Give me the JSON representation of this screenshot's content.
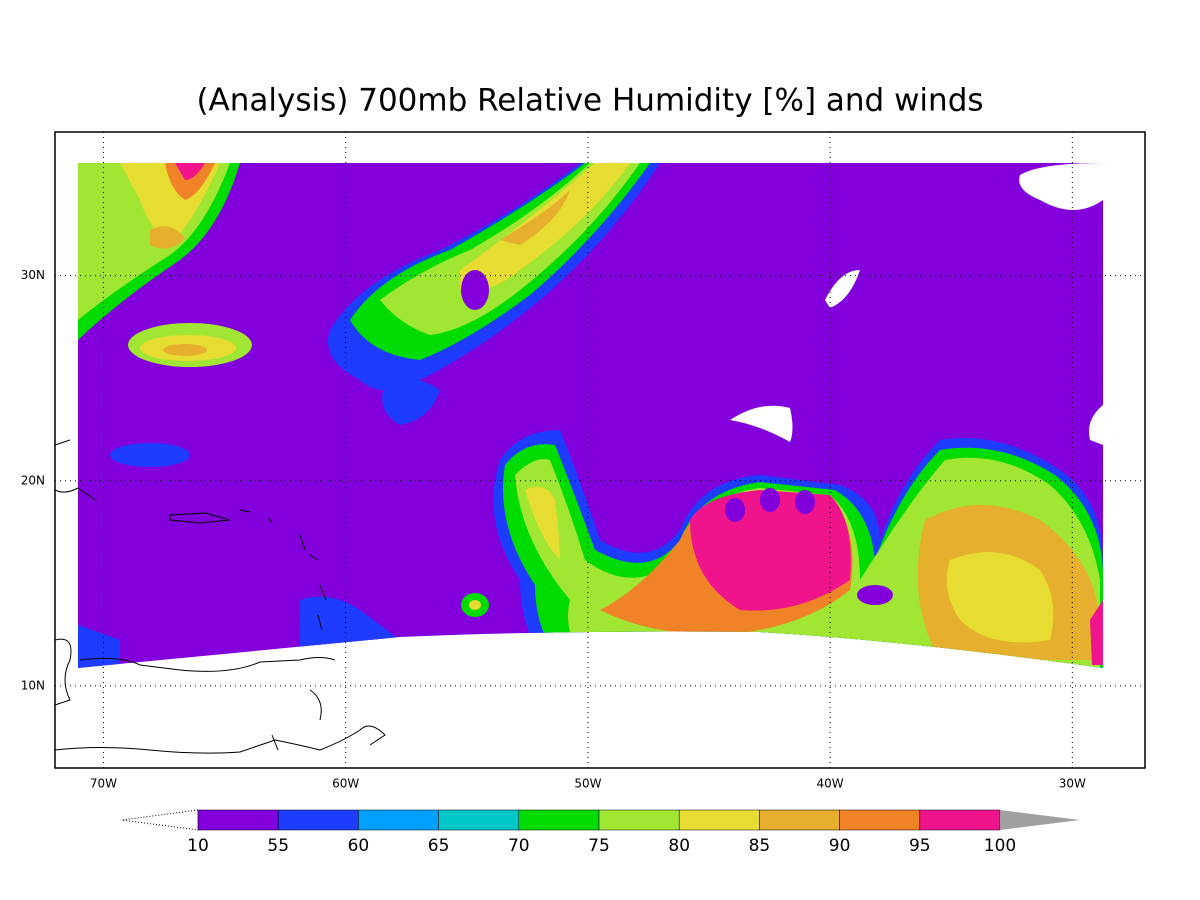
{
  "map": {
    "title": "(Analysis) 700mb Relative Humidity [%] and winds",
    "xlim": [
      -72,
      -27
    ],
    "ylim": [
      6,
      37
    ],
    "xticks": [
      {
        "value": -70,
        "label": "70W"
      },
      {
        "value": -60,
        "label": "60W"
      },
      {
        "value": -50,
        "label": "50W"
      },
      {
        "value": -40,
        "label": "40W"
      },
      {
        "value": -30,
        "label": "30W"
      }
    ],
    "yticks": [
      {
        "value": 10,
        "label": "10N"
      },
      {
        "value": 20,
        "label": "20N"
      },
      {
        "value": 30,
        "label": "30N"
      }
    ],
    "colorbar": {
      "levels": [
        10,
        55,
        60,
        65,
        70,
        75,
        80,
        85,
        90,
        95,
        100
      ],
      "colors": [
        "#8200dc",
        "#1e3cff",
        "#00a0ff",
        "#00c8c8",
        "#00dc00",
        "#a0e632",
        "#e6dc32",
        "#e6af2d",
        "#f08228",
        "#f0148c"
      ],
      "over_color": "#a0a0a0"
    }
  }
}
